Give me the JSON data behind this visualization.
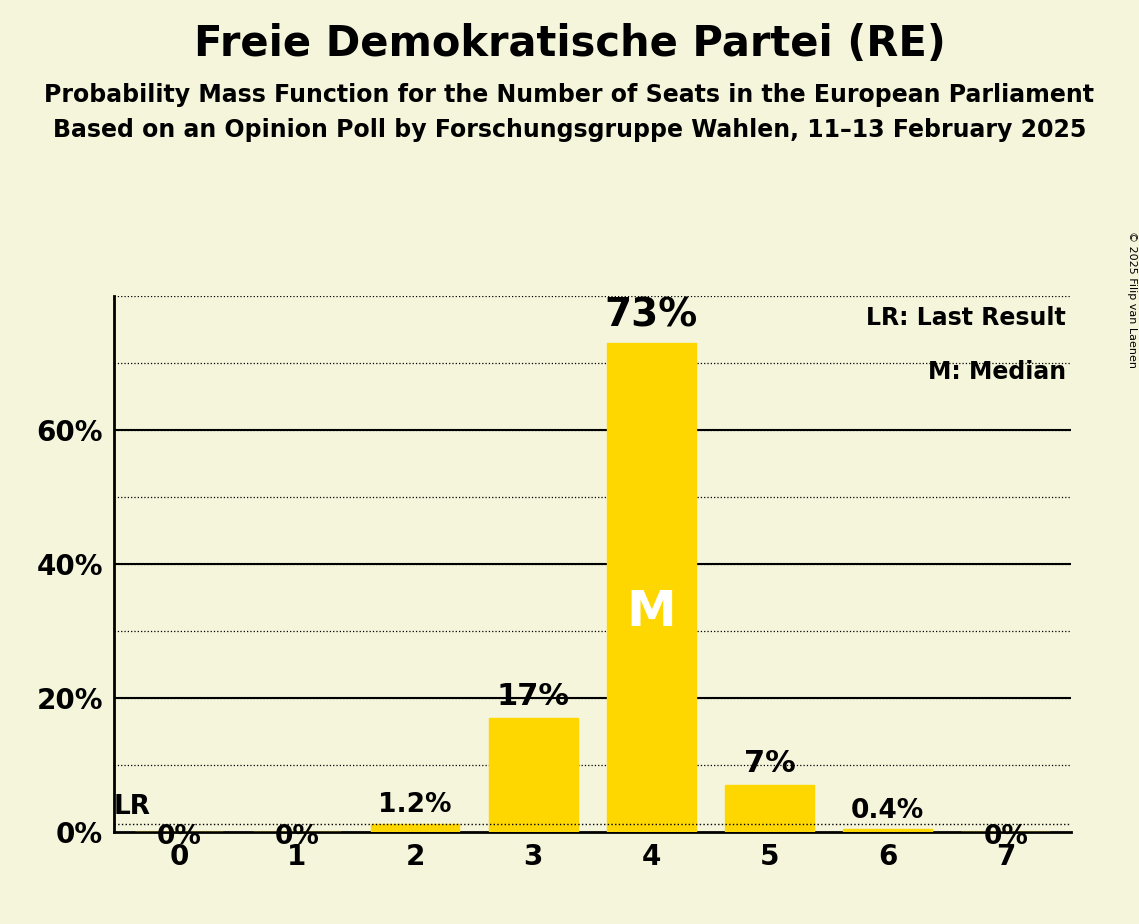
{
  "title": "Freie Demokratische Partei (RE)",
  "subtitle1": "Probability Mass Function for the Number of Seats in the European Parliament",
  "subtitle2": "Based on an Opinion Poll by Forschungsgruppe Wahlen, 11–13 February 2025",
  "copyright": "© 2025 Filip van Laenen",
  "seats": [
    0,
    1,
    2,
    3,
    4,
    5,
    6,
    7
  ],
  "probabilities": [
    0.0,
    0.0,
    0.012,
    0.17,
    0.73,
    0.07,
    0.004,
    0.0
  ],
  "bar_labels": [
    "0%",
    "0%",
    "1.2%",
    "17%",
    "73%",
    "7%",
    "0.4%",
    "0%"
  ],
  "bar_color": "#FFD700",
  "background_color": "#F5F5DC",
  "median_seat": 4,
  "lr_seat": 2,
  "lr_value": 0.012,
  "ylim_max": 0.8,
  "solid_yticks": [
    0.2,
    0.4,
    0.6
  ],
  "dotted_yticks": [
    0.1,
    0.2,
    0.3,
    0.4,
    0.5,
    0.6,
    0.7,
    0.8
  ],
  "ytick_display": [
    0.0,
    0.2,
    0.4,
    0.6
  ],
  "ytick_labels": [
    "0%",
    "20%",
    "40%",
    "60%"
  ],
  "title_fontsize": 30,
  "subtitle_fontsize": 17,
  "tick_fontsize": 20,
  "legend_fontsize": 17,
  "median_label_fontsize": 36,
  "pct_label_fontsize_large": 28,
  "pct_label_fontsize_medium": 22,
  "pct_label_fontsize_small": 19,
  "lr_label_fontsize": 19,
  "bar_width": 0.75
}
